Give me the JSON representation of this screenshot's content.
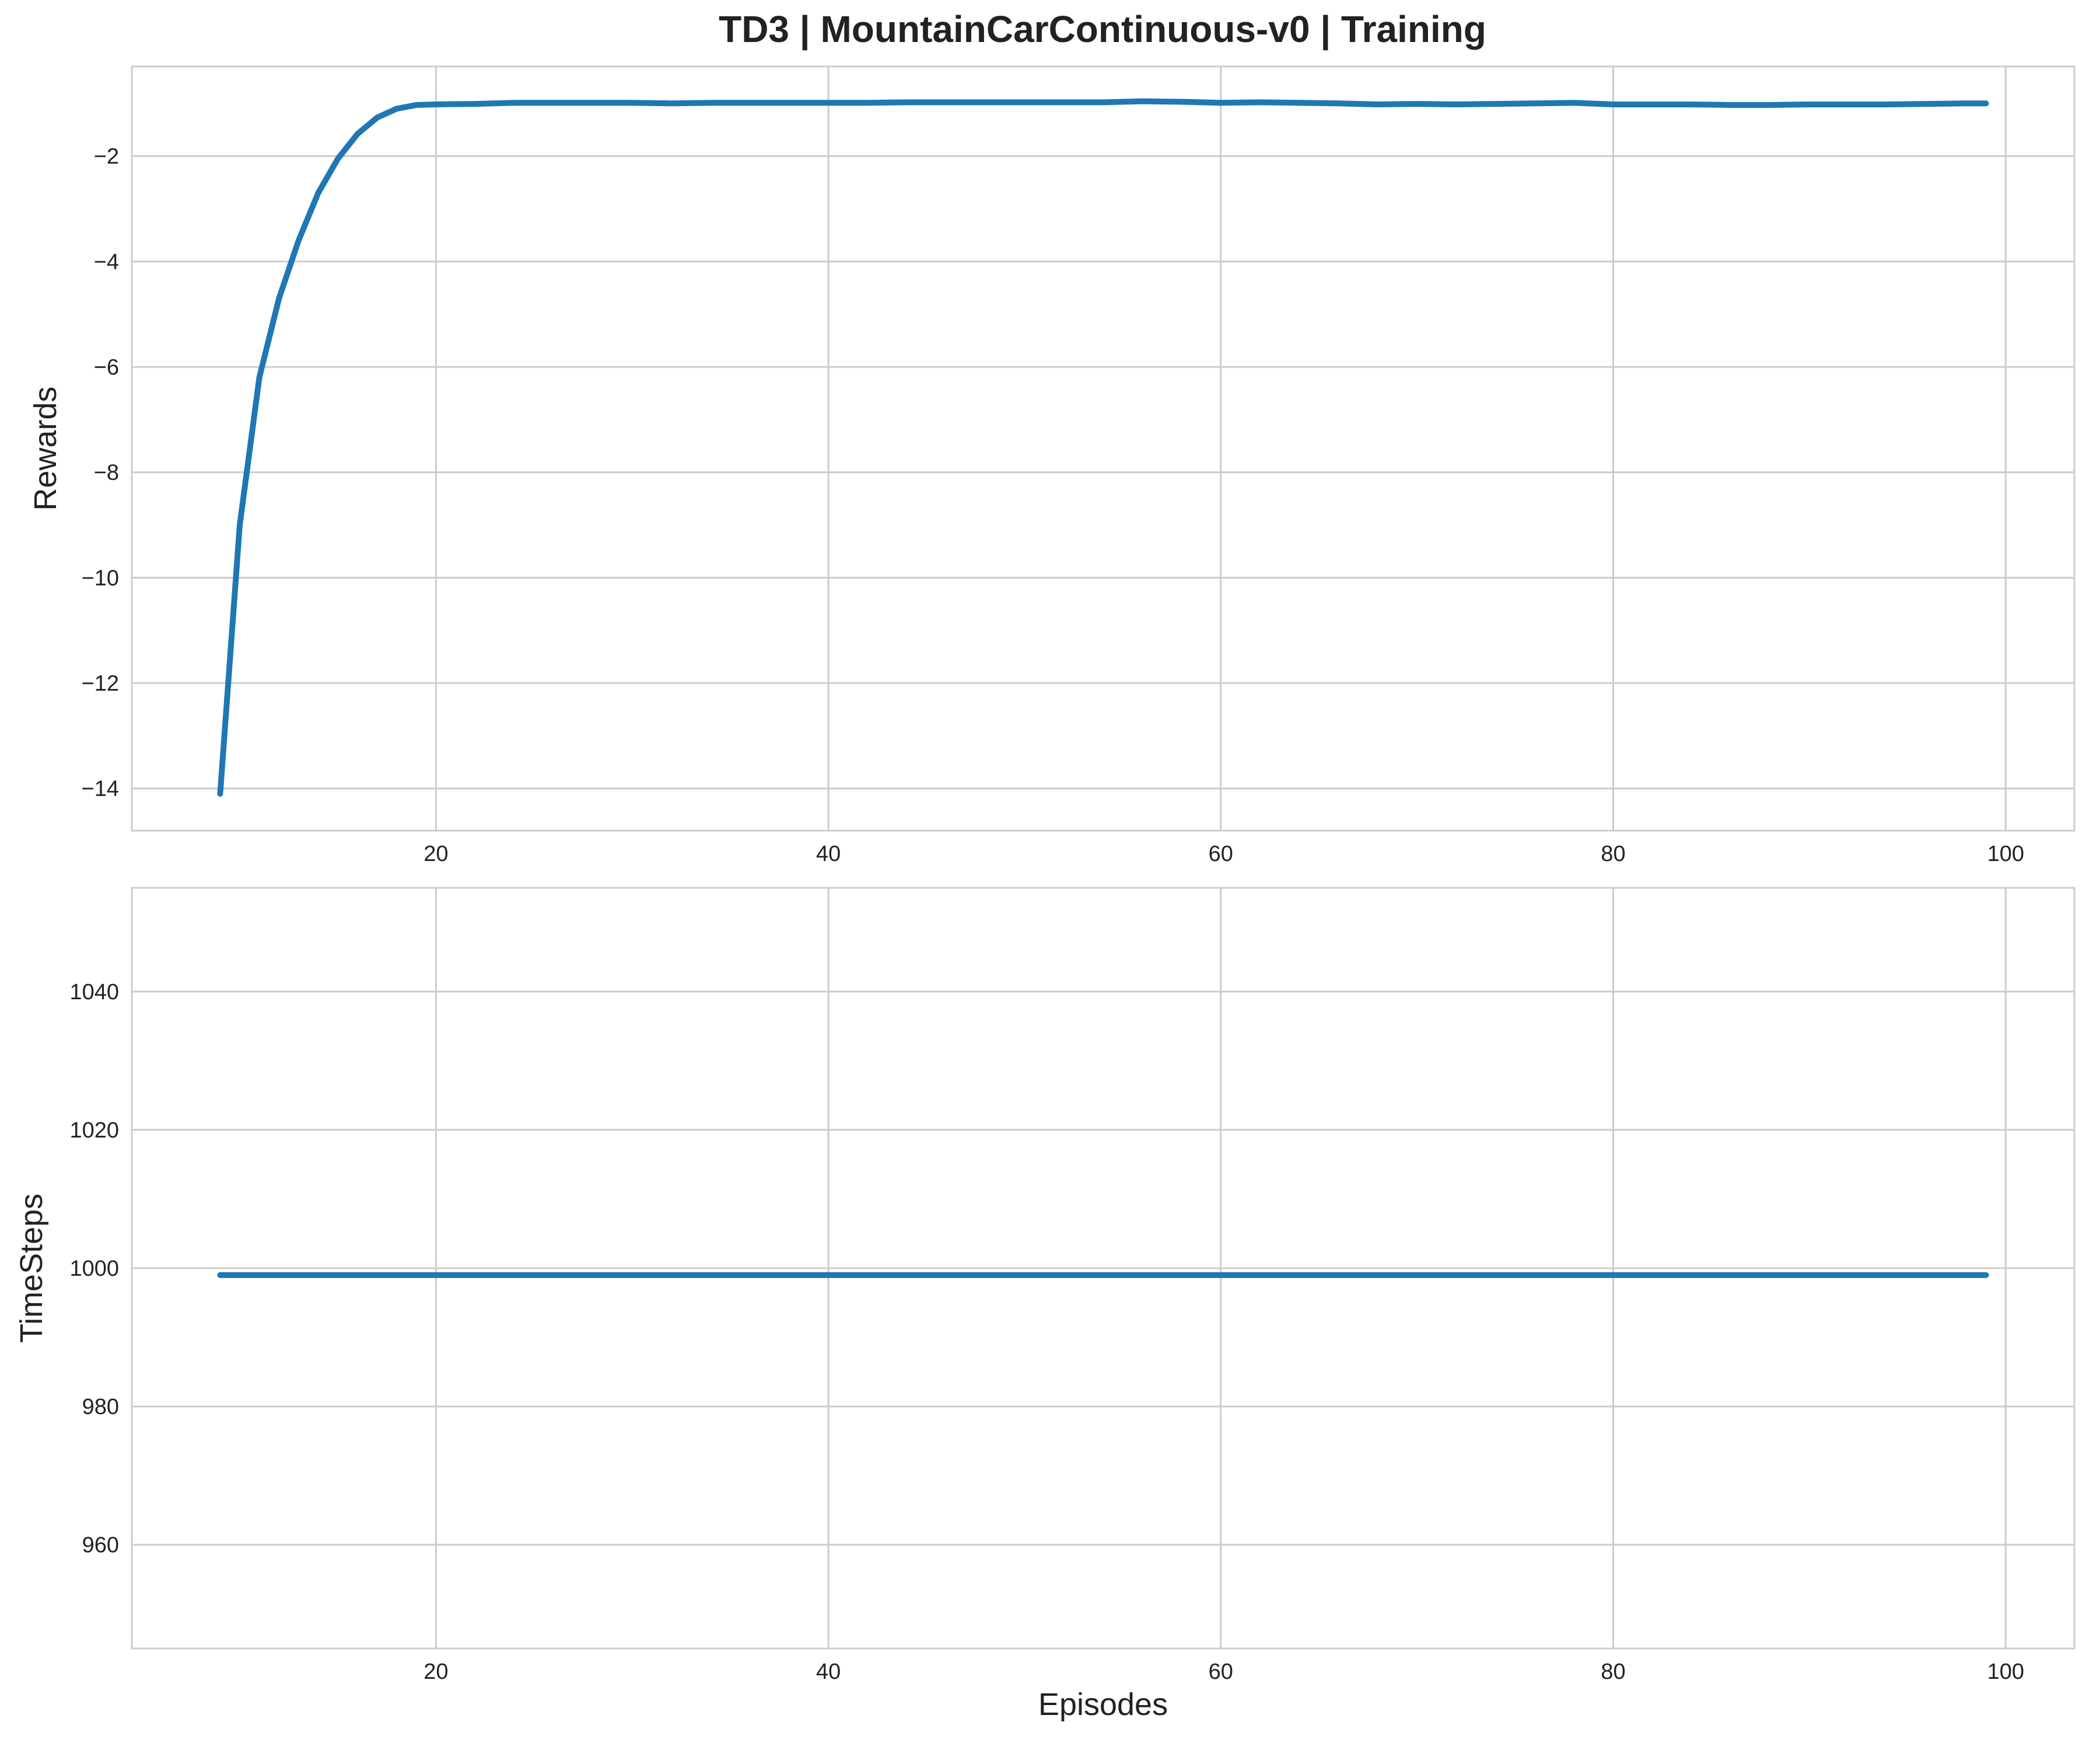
{
  "chart_data": {
    "title": "TD3 | MountainCarContinuous-v0 | Training",
    "colors": {
      "series": "#1f77b4",
      "grid": "#cccccc"
    },
    "grid": true,
    "panels": [
      {
        "type": "line",
        "ylabel": "Rewards",
        "xlabel": "",
        "xlim": [
          4.5,
          103.5
        ],
        "ylim": [
          -14.8,
          -0.3
        ],
        "xticks": [
          20,
          40,
          60,
          80,
          100
        ],
        "yticks": [
          -14,
          -12,
          -10,
          -8,
          -6,
          -4,
          -2
        ],
        "series": [
          {
            "x": [
              9,
              10,
              11,
              12,
              13,
              14,
              15,
              16,
              17,
              18,
              19,
              20,
              22,
              24,
              26,
              28,
              30,
              32,
              34,
              36,
              38,
              40,
              42,
              44,
              46,
              48,
              50,
              52,
              54,
              56,
              58,
              60,
              62,
              64,
              66,
              68,
              70,
              72,
              74,
              76,
              78,
              80,
              82,
              84,
              86,
              88,
              90,
              92,
              94,
              96,
              98,
              99
            ],
            "y": [
              -14.1,
              -9.0,
              -6.2,
              -4.7,
              -3.6,
              -2.7,
              -2.05,
              -1.58,
              -1.27,
              -1.1,
              -1.03,
              -1.02,
              -1.01,
              -0.99,
              -0.99,
              -0.99,
              -0.99,
              -1.0,
              -0.99,
              -0.99,
              -0.99,
              -0.99,
              -0.99,
              -0.98,
              -0.98,
              -0.98,
              -0.98,
              -0.98,
              -0.98,
              -0.96,
              -0.97,
              -0.99,
              -0.98,
              -0.99,
              -1.0,
              -1.02,
              -1.01,
              -1.02,
              -1.01,
              -1.0,
              -0.99,
              -1.02,
              -1.02,
              -1.02,
              -1.03,
              -1.03,
              -1.02,
              -1.02,
              -1.02,
              -1.01,
              -1.0,
              -1.0
            ]
          }
        ]
      },
      {
        "type": "line",
        "ylabel": "TimeSteps",
        "xlabel": "Episodes",
        "xlim": [
          4.5,
          103.5
        ],
        "ylim": [
          945,
          1055
        ],
        "xticks": [
          20,
          40,
          60,
          80,
          100
        ],
        "yticks": [
          960,
          980,
          1000,
          1020,
          1040
        ],
        "series": [
          {
            "x": [
              9,
              99
            ],
            "y": [
              999,
              999
            ]
          }
        ]
      }
    ]
  }
}
